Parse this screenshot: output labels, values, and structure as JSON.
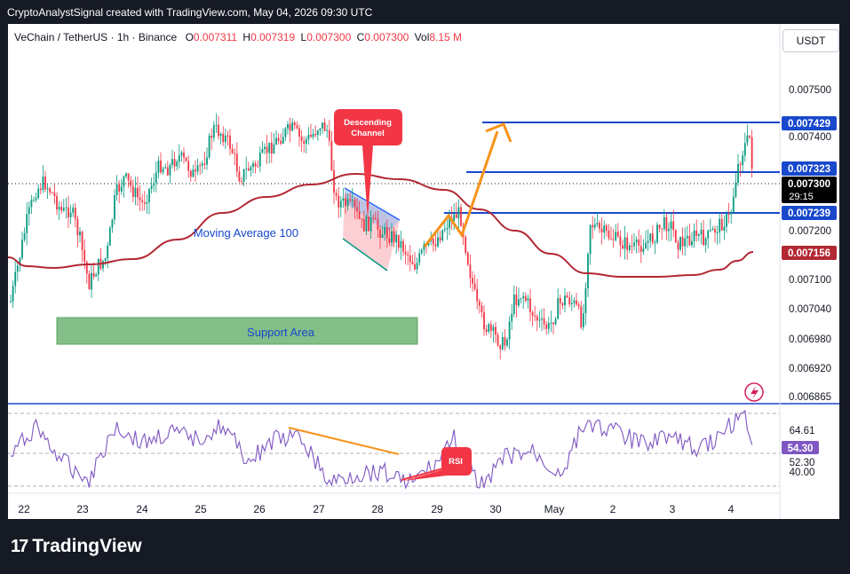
{
  "header": {
    "text": "CryptoAnalystSignal created with TradingView.com, May 04, 2026 09:30 UTC"
  },
  "legend": {
    "symbol": "VeChain / TetherUS · 1h · Binance",
    "o_label": "O",
    "o_value": "0.007311",
    "h_label": "H",
    "h_value": "0.007319",
    "l_label": "L",
    "l_value": "0.007300",
    "c_label": "C",
    "c_value": "0.007300",
    "vol_label": "Vol",
    "vol_value": "8.15 M"
  },
  "currency_button": "USDT",
  "price_axis": {
    "ticks": [
      "0.007500",
      "0.007400",
      "0.007200",
      "0.007100",
      "0.007040",
      "0.006980",
      "0.006920",
      "0.006865"
    ],
    "badges": {
      "resistance_top": "0.007429",
      "resistance_mid": "0.007323",
      "current_price": "0.007300",
      "countdown": "29:15",
      "support_line": "0.007239",
      "ma_value": "0.007156"
    }
  },
  "rsi_axis": {
    "ticks": [
      "64.61",
      "52.30",
      "40.00"
    ],
    "badge": "54.30"
  },
  "time_axis": {
    "labels": [
      "22",
      "23",
      "24",
      "25",
      "26",
      "27",
      "28",
      "29",
      "30",
      "May",
      "2",
      "3",
      "4"
    ]
  },
  "annotations": {
    "descending_channel": "Descending\nChannel",
    "moving_average": "Moving Average 100",
    "support_area": "Support Area",
    "rsi": "RSI"
  },
  "colors": {
    "up": "#089981",
    "down": "#f23645",
    "ma": "#b22833",
    "level": "#1848cc",
    "support": "#5aa55e",
    "arrow": "#f7931a",
    "rsi": "#7e57c2",
    "callout": "#f23645"
  },
  "brand": {
    "name": "TradingView"
  },
  "chart_data": {
    "type": "candlestick",
    "x_labels": [
      "22",
      "23",
      "24",
      "25",
      "26",
      "27",
      "28",
      "29",
      "30",
      "May",
      "2",
      "3",
      "4"
    ],
    "ylim": [
      0.00686,
      0.00754
    ],
    "levels": [
      0.007429,
      0.007323,
      0.007239
    ],
    "ma_last": 0.007156,
    "close_last": 0.0073,
    "price_path": [
      [
        0,
        0.00705
      ],
      [
        2,
        0.00712
      ],
      [
        5,
        0.00718
      ],
      [
        8,
        0.00722
      ],
      [
        10,
        0.00726
      ],
      [
        12,
        0.00722
      ],
      [
        15,
        0.00715
      ],
      [
        17,
        0.00716
      ],
      [
        19,
        0.00712
      ],
      [
        21,
        0.00708
      ],
      [
        23,
        0.00714
      ],
      [
        25,
        0.00718
      ],
      [
        27,
        0.00728
      ],
      [
        29,
        0.0073
      ],
      [
        31,
        0.00728
      ],
      [
        33,
        0.00725
      ],
      [
        35,
        0.0073
      ],
      [
        37,
        0.00736
      ],
      [
        39,
        0.00733
      ],
      [
        41,
        0.00738
      ],
      [
        43,
        0.00733
      ],
      [
        45,
        0.00741
      ],
      [
        47,
        0.00737
      ],
      [
        49,
        0.00732
      ],
      [
        51,
        0.00738
      ],
      [
        53,
        0.00734
      ],
      [
        55,
        0.00738
      ],
      [
        57,
        0.00736
      ],
      [
        59,
        0.00741
      ],
      [
        61,
        0.00735
      ],
      [
        63,
        0.00731
      ],
      [
        65,
        0.00735
      ],
      [
        67,
        0.00739
      ],
      [
        69,
        0.00736
      ],
      [
        71,
        0.00734
      ],
      [
        73,
        0.0074
      ],
      [
        75,
        0.00728
      ],
      [
        77,
        0.00722
      ],
      [
        79,
        0.00726
      ],
      [
        81,
        0.00718
      ],
      [
        83,
        0.00722
      ],
      [
        85,
        0.0072
      ],
      [
        87,
        0.00717
      ],
      [
        89,
        0.00715
      ],
      [
        91,
        0.00713
      ],
      [
        93,
        0.00715
      ],
      [
        95,
        0.00719
      ],
      [
        97,
        0.00717
      ],
      [
        99,
        0.00722
      ],
      [
        101,
        0.00724
      ],
      [
        103,
        0.00718
      ],
      [
        105,
        0.00713
      ],
      [
        107,
        0.007
      ],
      [
        109,
        0.00703
      ],
      [
        111,
        0.00697
      ],
      [
        113,
        0.007
      ],
      [
        115,
        0.00702
      ],
      [
        117,
        0.00695
      ],
      [
        119,
        0.00705
      ],
      [
        121,
        0.00708
      ],
      [
        123,
        0.00702
      ],
      [
        125,
        0.00706
      ],
      [
        127,
        0.00703
      ],
      [
        129,
        0.00701
      ],
      [
        131,
        0.00699
      ],
      [
        133,
        0.00703
      ],
      [
        135,
        0.00708
      ],
      [
        137,
        0.00706
      ],
      [
        139,
        0.00702
      ],
      [
        141,
        0.00718
      ],
      [
        143,
        0.00724
      ],
      [
        145,
        0.0072
      ],
      [
        147,
        0.00722
      ],
      [
        149,
        0.00718
      ],
      [
        151,
        0.0072
      ],
      [
        153,
        0.00717
      ],
      [
        155,
        0.00719
      ],
      [
        157,
        0.00721
      ],
      [
        159,
        0.00718
      ],
      [
        161,
        0.0072
      ],
      [
        163,
        0.00724
      ],
      [
        165,
        0.00721
      ],
      [
        167,
        0.00718
      ],
      [
        169,
        0.0072
      ],
      [
        171,
        0.00719
      ],
      [
        173,
        0.00722
      ],
      [
        175,
        0.00726
      ],
      [
        177,
        0.00735
      ],
      [
        179,
        0.00738
      ],
      [
        181,
        0.00743
      ],
      [
        183,
        0.00734
      ],
      [
        185,
        0.0073
      ]
    ],
    "rsi_ticks": [
      64.61,
      52.3,
      40.0
    ],
    "rsi_last": 54.3
  }
}
